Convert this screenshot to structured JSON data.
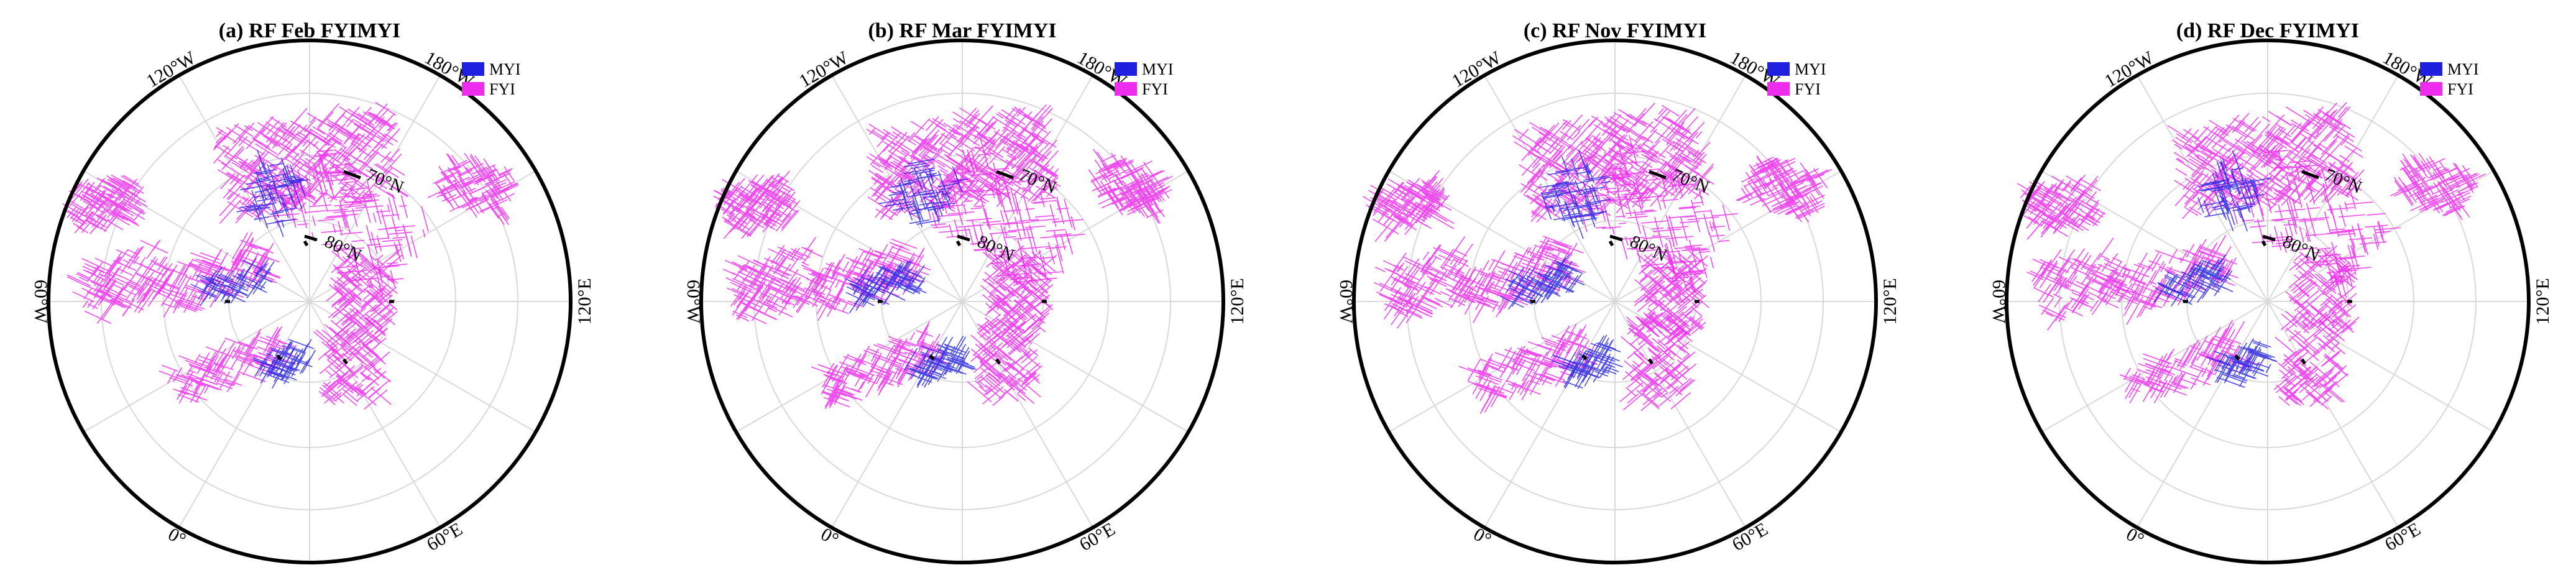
{
  "colors": {
    "myi": "#1f1fe0",
    "fyi": "#ee2cee",
    "frame": "#000000",
    "grid": "#d9d9d9"
  },
  "legend": [
    {
      "key": "myi",
      "label": "MYI"
    },
    {
      "key": "fyi",
      "label": "FYI"
    }
  ],
  "longitude_labels": {
    "w120": "120°W",
    "w180": "180°W",
    "w60": "60°W",
    "e120": "120°E",
    "zero": "0°",
    "e60": "60°E"
  },
  "latitude_labels": {
    "lat70": "70°N",
    "lat80": "80°N"
  },
  "panels": [
    {
      "title": "(a) RF Feb FYIMYI"
    },
    {
      "title": "(b) RF Mar FYIMYI"
    },
    {
      "title": "(c) RF Nov FYIMYI"
    },
    {
      "title": "(d) RF Dec FYIMYI"
    }
  ]
}
